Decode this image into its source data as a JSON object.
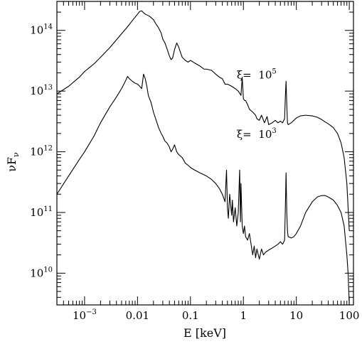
{
  "chart_data": {
    "type": "line",
    "title": "",
    "xlabel": "E [keV]",
    "ylabel": "νF",
    "ylabel_sub": "ν",
    "xscale": "log",
    "yscale": "log",
    "xlim": [
      0.0003,
      120
    ],
    "ylim": [
      3000000000.0,
      300000000000000.0
    ],
    "x_ticks": [
      {
        "value": 0.001,
        "base": "10",
        "exp": "−3"
      },
      {
        "value": 0.01,
        "label": "0.01"
      },
      {
        "value": 0.1,
        "label": "0.1"
      },
      {
        "value": 1,
        "label": "1"
      },
      {
        "value": 10,
        "label": "10"
      },
      {
        "value": 100,
        "label": "100"
      }
    ],
    "y_ticks": [
      {
        "value": 10000000000.0,
        "base": "10",
        "exp": "10"
      },
      {
        "value": 100000000000.0,
        "base": "10",
        "exp": "11"
      },
      {
        "value": 1000000000000.0,
        "base": "10",
        "exp": "12"
      },
      {
        "value": 10000000000000.0,
        "base": "10",
        "exp": "13"
      },
      {
        "value": 100000000000000.0,
        "base": "10",
        "exp": "14"
      }
    ],
    "annotations": [
      {
        "prefix": "ξ=",
        "base": "10",
        "exp": "5",
        "x": 0.75,
        "y": 16000000000000.0
      },
      {
        "prefix": "ξ=",
        "base": "10",
        "exp": "3",
        "x": 0.75,
        "y": 1700000000000.0
      }
    ],
    "series": [
      {
        "x": [
          0.0003,
          0.0005,
          0.0008,
          0.001,
          0.0015,
          0.002,
          0.003,
          0.004,
          0.005,
          0.006,
          0.007,
          0.008,
          0.009,
          0.01,
          0.011,
          0.012,
          0.013,
          0.014,
          0.015,
          0.017,
          0.02,
          0.022,
          0.025,
          0.028,
          0.03,
          0.033,
          0.036,
          0.04,
          0.043,
          0.046,
          0.05,
          0.055,
          0.06,
          0.065,
          0.07,
          0.08,
          0.09,
          0.1,
          0.12,
          0.15,
          0.18,
          0.2,
          0.25,
          0.3,
          0.35,
          0.4,
          0.45,
          0.5,
          0.6,
          0.7,
          0.8,
          0.9,
          0.95,
          1.0,
          1.05,
          1.1,
          1.2,
          1.3,
          1.5,
          1.7,
          1.8,
          2.0,
          2.2,
          2.5,
          2.8,
          3.0,
          3.5,
          4.0,
          4.5,
          5.0,
          5.5,
          6.0,
          6.2,
          6.4,
          6.6,
          6.8,
          7.0,
          7.5,
          8,
          9,
          10,
          12,
          15,
          20,
          25,
          30,
          35,
          40,
          50,
          60,
          70,
          80,
          90,
          95,
          100
        ],
        "y": [
          9000000000000.0,
          12000000000000.0,
          17000000000000.0,
          21000000000000.0,
          28000000000000.0,
          36000000000000.0,
          52000000000000.0,
          70000000000000.0,
          88000000000000.0,
          106000000000000.0,
          125000000000000.0,
          145000000000000.0,
          165000000000000.0,
          185000000000000.0,
          205000000000000.0,
          210000000000000.0,
          195000000000000.0,
          185000000000000.0,
          180000000000000.0,
          170000000000000.0,
          150000000000000.0,
          130000000000000.0,
          110000000000000.0,
          90000000000000.0,
          72000000000000.0,
          62000000000000.0,
          50000000000000.0,
          38000000000000.0,
          33000000000000.0,
          35000000000000.0,
          48000000000000.0,
          62000000000000.0,
          53000000000000.0,
          43000000000000.0,
          36000000000000.0,
          32000000000000.0,
          30000000000000.0,
          32000000000000.0,
          29000000000000.0,
          26000000000000.0,
          23000000000000.0,
          23000000000000.0,
          22000000000000.0,
          19000000000000.0,
          17000000000000.0,
          16000000000000.0,
          13000000000000.0,
          13000000000000.0,
          12000000000000.0,
          11000000000000.0,
          10000000000000.0,
          8500000000000.0,
          17000000000000.0,
          7500000000000.0,
          7000000000000.0,
          7000000000000.0,
          6000000000000.0,
          5000000000000.0,
          4500000000000.0,
          4000000000000.0,
          3500000000000.0,
          3300000000000.0,
          4000000000000.0,
          3000000000000.0,
          3800000000000.0,
          2800000000000.0,
          3000000000000.0,
          3300000000000.0,
          3000000000000.0,
          3200000000000.0,
          3000000000000.0,
          3500000000000.0,
          8000000000000.0,
          14500000000000.0,
          6000000000000.0,
          3000000000000.0,
          2800000000000.0,
          2900000000000.0,
          3000000000000.0,
          3300000000000.0,
          3600000000000.0,
          3900000000000.0,
          4000000000000.0,
          3900000000000.0,
          3700000000000.0,
          3400000000000.0,
          3100000000000.0,
          2900000000000.0,
          2500000000000.0,
          2000000000000.0,
          1400000000000.0,
          800000000000.0,
          300000000000.0,
          120000000000.0,
          50000000000.0
        ]
      },
      {
        "x": [
          0.0003,
          0.0005,
          0.0008,
          0.001,
          0.0015,
          0.002,
          0.003,
          0.004,
          0.005,
          0.006,
          0.0065,
          0.007,
          0.008,
          0.009,
          0.01,
          0.011,
          0.012,
          0.013,
          0.014,
          0.015,
          0.016,
          0.018,
          0.02,
          0.022,
          0.025,
          0.028,
          0.03,
          0.033,
          0.036,
          0.04,
          0.043,
          0.046,
          0.05,
          0.055,
          0.06,
          0.07,
          0.08,
          0.09,
          0.1,
          0.12,
          0.15,
          0.2,
          0.25,
          0.3,
          0.35,
          0.4,
          0.45,
          0.48,
          0.5,
          0.52,
          0.55,
          0.6,
          0.62,
          0.65,
          0.7,
          0.75,
          0.8,
          0.85,
          0.88,
          0.9,
          0.95,
          1.0,
          1.05,
          1.1,
          1.2,
          1.3,
          1.5,
          1.6,
          1.7,
          1.8,
          2.0,
          2.2,
          2.4,
          2.6,
          3.0,
          3.5,
          4.0,
          4.5,
          5.0,
          5.5,
          6.0,
          6.2,
          6.4,
          6.6,
          6.8,
          7.0,
          8,
          9,
          10,
          12,
          15,
          20,
          25,
          30,
          35,
          40,
          50,
          60,
          70,
          80,
          90,
          95,
          100
        ],
        "y": [
          200000000000.0,
          400000000000.0,
          750000000000.0,
          1000000000000.0,
          1800000000000.0,
          3000000000000.0,
          5500000000000.0,
          8000000000000.0,
          11000000000000.0,
          15000000000000.0,
          17500000000000.0,
          16000000000000.0,
          14500000000000.0,
          13500000000000.0,
          13000000000000.0,
          12000000000000.0,
          11000000000000.0,
          19000000000000.0,
          16000000000000.0,
          12000000000000.0,
          8500000000000.0,
          6500000000000.0,
          4500000000000.0,
          3500000000000.0,
          2500000000000.0,
          2000000000000.0,
          1800000000000.0,
          1500000000000.0,
          1400000000000.0,
          1200000000000.0,
          1000000000000.0,
          1100000000000.0,
          1300000000000.0,
          1000000000000.0,
          900000000000.0,
          800000000000.0,
          650000000000.0,
          600000000000.0,
          550000000000.0,
          500000000000.0,
          450000000000.0,
          400000000000.0,
          350000000000.0,
          300000000000.0,
          250000000000.0,
          200000000000.0,
          150000000000.0,
          500000000000.0,
          120000000000.0,
          80000000000.0,
          200000000000.0,
          90000000000.0,
          160000000000.0,
          70000000000.0,
          120000000000.0,
          60000000000.0,
          100000000000.0,
          500000000000.0,
          70000000000.0,
          300000000000.0,
          60000000000.0,
          45000000000.0,
          60000000000.0,
          40000000000.0,
          35000000000.0,
          45000000000.0,
          20000000000.0,
          28000000000.0,
          18000000000.0,
          25000000000.0,
          17000000000.0,
          25000000000.0,
          20000000000.0,
          22000000000.0,
          24000000000.0,
          26000000000.0,
          28000000000.0,
          30000000000.0,
          33000000000.0,
          30000000000.0,
          35000000000.0,
          120000000000.0,
          450000000000.0,
          100000000000.0,
          50000000000.0,
          40000000000.0,
          38000000000.0,
          40000000000.0,
          45000000000.0,
          60000000000.0,
          100000000000.0,
          150000000000.0,
          180000000000.0,
          190000000000.0,
          190000000000.0,
          180000000000.0,
          160000000000.0,
          130000000000.0,
          100000000000.0,
          60000000000.0,
          20000000000.0,
          10000000000.0,
          3000000000.0
        ]
      }
    ]
  }
}
